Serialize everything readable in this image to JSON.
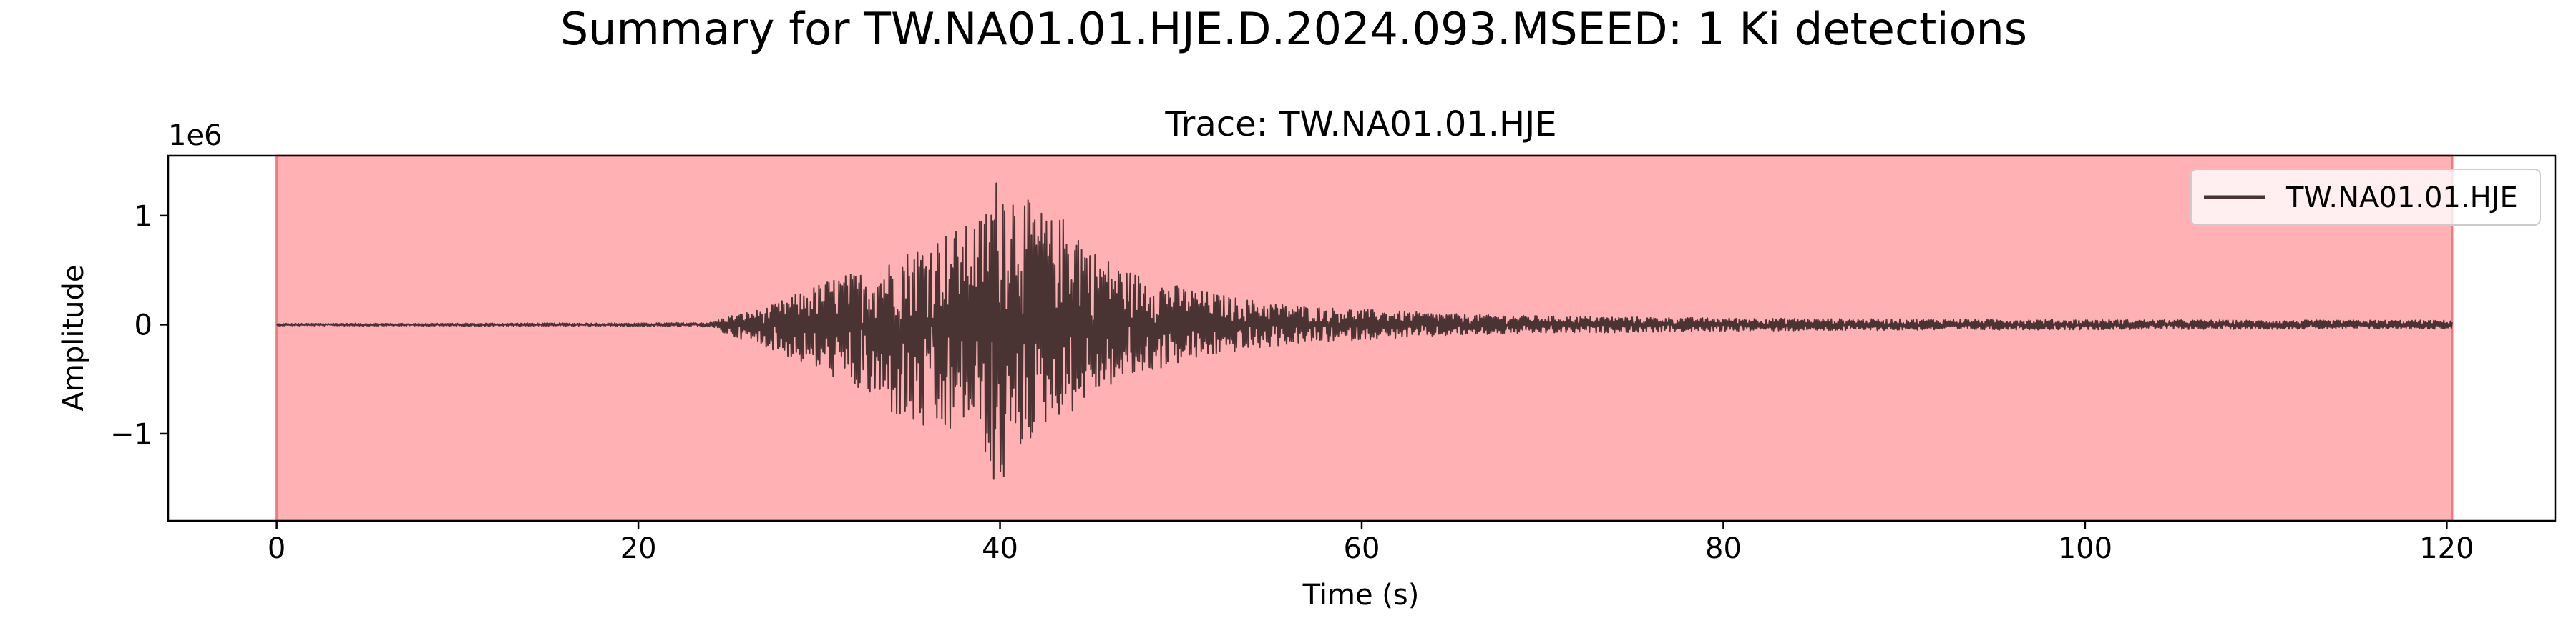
{
  "figure": {
    "suptitle": "Summary for TW.NA01.01.HJE.D.2024.093.MSEED: 1 Ki detections"
  },
  "chart_data": {
    "type": "line",
    "title": "Trace: TW.NA01.01.HJE",
    "xlabel": "Time (s)",
    "ylabel": "Amplitude",
    "y_offset_text": "1e6",
    "xlim": [
      -6,
      126
    ],
    "ylim": [
      -1.8,
      1.55
    ],
    "xticks": [
      0,
      20,
      40,
      60,
      80,
      100,
      120
    ],
    "xtick_labels": [
      "0",
      "20",
      "40",
      "60",
      "80",
      "100",
      "120"
    ],
    "yticks": [
      -1,
      0,
      1
    ],
    "ytick_labels": [
      "−1",
      "0",
      "1"
    ],
    "grid": false,
    "legend": {
      "position": "top-right",
      "entries": [
        "TW.NA01.01.HJE"
      ]
    },
    "detection_span": {
      "label": "Ki",
      "start": 0,
      "end": 120.3
    },
    "series": [
      {
        "name": "TW.NA01.01.HJE",
        "color": "#4a3333",
        "x_start": 0,
        "x_end": 120.3,
        "envelope": {
          "x": [
            0,
            20,
            24,
            25,
            27,
            29,
            31,
            33,
            35,
            37,
            38,
            39,
            39.6,
            40,
            40.5,
            41,
            42,
            43,
            44,
            45,
            47,
            50,
            53,
            56,
            60,
            65,
            70,
            80,
            90,
            100,
            110,
            120.3
          ],
          "max": [
            0.01,
            0.015,
            0.02,
            0.08,
            0.15,
            0.3,
            0.45,
            0.5,
            0.7,
            0.85,
            0.9,
            1.0,
            1.3,
            1.42,
            1.38,
            1.2,
            1.1,
            0.95,
            1.05,
            0.7,
            0.5,
            0.35,
            0.25,
            0.18,
            0.14,
            0.1,
            0.08,
            0.06,
            0.05,
            0.045,
            0.04,
            0.04
          ],
          "min": [
            -0.01,
            -0.015,
            -0.02,
            -0.1,
            -0.2,
            -0.35,
            -0.5,
            -0.7,
            -0.95,
            -1.05,
            -0.9,
            -1.0,
            -1.62,
            -1.58,
            -1.3,
            -1.2,
            -1.0,
            -0.85,
            -0.8,
            -0.65,
            -0.5,
            -0.35,
            -0.25,
            -0.18,
            -0.14,
            -0.1,
            -0.08,
            -0.06,
            -0.05,
            -0.045,
            -0.04,
            -0.04
          ]
        }
      }
    ]
  },
  "colors": {
    "span_fill": "#ffb1b3",
    "span_edge": "#f07a80",
    "trace": "#4a3333"
  }
}
